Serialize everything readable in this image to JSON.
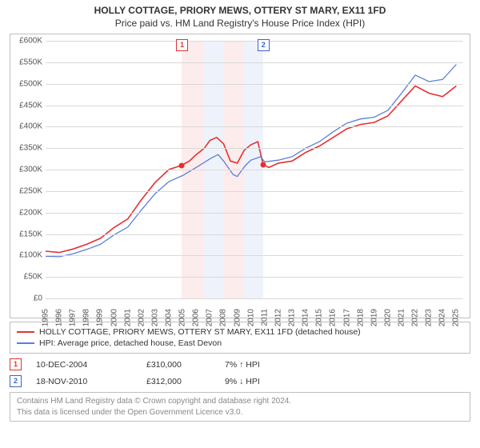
{
  "title": {
    "main": "HOLLY COTTAGE, PRIORY MEWS, OTTERY ST MARY, EX11 1FD",
    "sub": "Price paid vs. HM Land Registry's House Price Index (HPI)",
    "main_fontsize": 12,
    "sub_fontsize": 12
  },
  "chart": {
    "type": "line",
    "background_color": "#ffffff",
    "border_color": "#bfbfbf",
    "grid_color": "#d9d9d9",
    "x_range": [
      1995,
      2025.5
    ],
    "y_range": [
      0,
      600000
    ],
    "y_ticks": [
      0,
      50000,
      100000,
      150000,
      200000,
      250000,
      300000,
      350000,
      400000,
      450000,
      500000,
      550000,
      600000
    ],
    "y_tick_labels": [
      "£0",
      "£50K",
      "£100K",
      "£150K",
      "£200K",
      "£250K",
      "£300K",
      "£350K",
      "£400K",
      "£450K",
      "£500K",
      "£550K",
      "£600K"
    ],
    "x_ticks": [
      1995,
      1996,
      1997,
      1998,
      1999,
      2000,
      2001,
      2002,
      2003,
      2004,
      2005,
      2006,
      2007,
      2008,
      2009,
      2010,
      2011,
      2012,
      2013,
      2014,
      2015,
      2016,
      2017,
      2018,
      2019,
      2020,
      2021,
      2022,
      2023,
      2024,
      2025
    ],
    "bands": [
      {
        "from": 2004.94,
        "to": 2006.5,
        "color": "#fdecec"
      },
      {
        "from": 2006.5,
        "to": 2008.0,
        "color": "#eef3fb"
      },
      {
        "from": 2008.0,
        "to": 2009.5,
        "color": "#fdecec"
      },
      {
        "from": 2009.5,
        "to": 2010.88,
        "color": "#eef3fb"
      }
    ],
    "series": [
      {
        "id": "property",
        "label": "HOLLY COTTAGE, PRIORY MEWS, OTTERY ST MARY, EX11 1FD (detached house)",
        "color": "#e63030",
        "line_width": 1.6,
        "points": [
          [
            1995,
            110000
          ],
          [
            1996,
            107000
          ],
          [
            1997,
            115000
          ],
          [
            1998,
            126000
          ],
          [
            1999,
            140000
          ],
          [
            2000,
            165000
          ],
          [
            2001,
            185000
          ],
          [
            2002,
            230000
          ],
          [
            2003,
            270000
          ],
          [
            2004,
            300000
          ],
          [
            2004.94,
            310000
          ],
          [
            2005.5,
            320000
          ],
          [
            2006,
            335000
          ],
          [
            2006.6,
            350000
          ],
          [
            2007,
            368000
          ],
          [
            2007.5,
            375000
          ],
          [
            2008,
            360000
          ],
          [
            2008.5,
            320000
          ],
          [
            2009,
            315000
          ],
          [
            2009.5,
            345000
          ],
          [
            2010,
            358000
          ],
          [
            2010.5,
            365000
          ],
          [
            2010.88,
            312000
          ],
          [
            2011.3,
            305000
          ],
          [
            2012,
            315000
          ],
          [
            2013,
            320000
          ],
          [
            2014,
            340000
          ],
          [
            2015,
            355000
          ],
          [
            2016,
            375000
          ],
          [
            2017,
            395000
          ],
          [
            2018,
            405000
          ],
          [
            2019,
            410000
          ],
          [
            2020,
            425000
          ],
          [
            2021,
            460000
          ],
          [
            2022,
            495000
          ],
          [
            2023,
            478000
          ],
          [
            2024,
            470000
          ],
          [
            2025,
            495000
          ]
        ]
      },
      {
        "id": "hpi",
        "label": "HPI: Average price, detached house, East Devon",
        "color": "#5b7fd6",
        "line_width": 1.3,
        "points": [
          [
            1995,
            98000
          ],
          [
            1996,
            97000
          ],
          [
            1997,
            104000
          ],
          [
            1998,
            114000
          ],
          [
            1999,
            126000
          ],
          [
            2000,
            148000
          ],
          [
            2001,
            166000
          ],
          [
            2002,
            206000
          ],
          [
            2003,
            244000
          ],
          [
            2004,
            272000
          ],
          [
            2005,
            286000
          ],
          [
            2006,
            305000
          ],
          [
            2007,
            325000
          ],
          [
            2007.6,
            335000
          ],
          [
            2008,
            320000
          ],
          [
            2008.7,
            288000
          ],
          [
            2009,
            284000
          ],
          [
            2009.6,
            310000
          ],
          [
            2010,
            322000
          ],
          [
            2010.7,
            330000
          ],
          [
            2011,
            318000
          ],
          [
            2012,
            322000
          ],
          [
            2013,
            330000
          ],
          [
            2014,
            350000
          ],
          [
            2015,
            365000
          ],
          [
            2016,
            388000
          ],
          [
            2017,
            408000
          ],
          [
            2018,
            418000
          ],
          [
            2019,
            422000
          ],
          [
            2020,
            438000
          ],
          [
            2021,
            478000
          ],
          [
            2022,
            520000
          ],
          [
            2023,
            505000
          ],
          [
            2024,
            510000
          ],
          [
            2025,
            545000
          ]
        ]
      }
    ],
    "markers": [
      {
        "n": "1",
        "x": 2004.94,
        "y": 310000,
        "border": "#e63030",
        "dot_color": "#e63030"
      },
      {
        "n": "2",
        "x": 2010.88,
        "y": 312000,
        "border": "#3a63c8",
        "dot_color": "#e63030"
      }
    ]
  },
  "legend": {
    "items": [
      {
        "color": "#e63030",
        "text": "HOLLY COTTAGE, PRIORY MEWS, OTTERY ST MARY, EX11 1FD (detached house)"
      },
      {
        "color": "#5b7fd6",
        "text": "HPI: Average price, detached house, East Devon"
      }
    ]
  },
  "sales": [
    {
      "n": "1",
      "border": "#e63030",
      "date": "10-DEC-2004",
      "price": "£310,000",
      "delta": "7% ↑ HPI"
    },
    {
      "n": "2",
      "border": "#3a63c8",
      "date": "18-NOV-2010",
      "price": "£312,000",
      "delta": "9% ↓ HPI"
    }
  ],
  "footer": {
    "line1": "Contains HM Land Registry data © Crown copyright and database right 2024.",
    "line2": "This data is licensed under the Open Government Licence v3.0."
  }
}
